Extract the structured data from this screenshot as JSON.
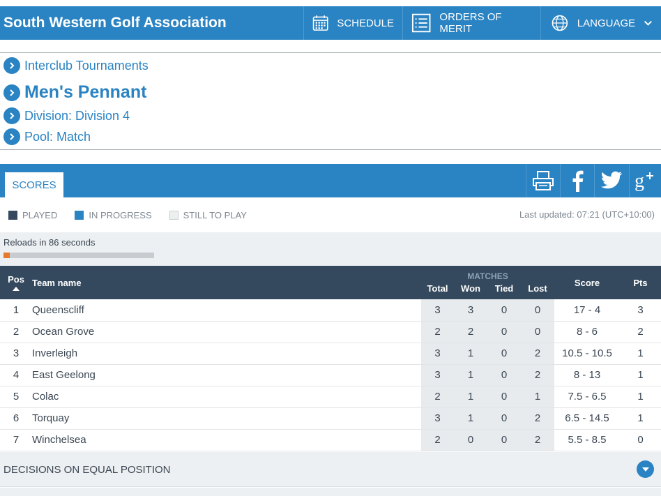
{
  "header": {
    "site_title": "South Western Golf Association",
    "nav": {
      "schedule": "SCHEDULE",
      "orders_of_merit": "ORDERS OF MERIT",
      "language": "LANGUAGE"
    }
  },
  "breadcrumbs": {
    "interclub": "Interclub Tournaments",
    "title": "Men's Pennant",
    "division": "Division: Division 4",
    "pool": "Pool: Match"
  },
  "scores_bar": {
    "tab_label": "SCORES",
    "share_icons": [
      "print-icon",
      "facebook-icon",
      "twitter-icon",
      "google-plus-icon"
    ]
  },
  "legend": {
    "played": "PLAYED",
    "in_progress": "IN PROGRESS",
    "still_to_play": "STILL TO PLAY",
    "last_updated": "Last updated: 07:21 (UTC+10:00)",
    "colors": {
      "played": "#34495e",
      "in_progress": "#2a83c2",
      "still_to_play": "#ecefef"
    }
  },
  "reload": {
    "text": "Reloads in 86 seconds",
    "progress_fraction": 0.04
  },
  "table": {
    "headers": {
      "pos": "Pos",
      "team": "Team name",
      "matches": "MATCHES",
      "total": "Total",
      "won": "Won",
      "tied": "Tied",
      "lost": "Lost",
      "score": "Score",
      "pts": "Pts"
    },
    "rows": [
      {
        "pos": "1",
        "team": "Queenscliff",
        "total": "3",
        "won": "3",
        "tied": "0",
        "lost": "0",
        "score": "17 - 4",
        "pts": "3"
      },
      {
        "pos": "2",
        "team": "Ocean Grove",
        "total": "2",
        "won": "2",
        "tied": "0",
        "lost": "0",
        "score": "8 - 6",
        "pts": "2"
      },
      {
        "pos": "3",
        "team": "Inverleigh",
        "total": "3",
        "won": "1",
        "tied": "0",
        "lost": "2",
        "score": "10.5 - 10.5",
        "pts": "1"
      },
      {
        "pos": "4",
        "team": "East Geelong",
        "total": "3",
        "won": "1",
        "tied": "0",
        "lost": "2",
        "score": "8 - 13",
        "pts": "1"
      },
      {
        "pos": "5",
        "team": "Colac",
        "total": "2",
        "won": "1",
        "tied": "0",
        "lost": "1",
        "score": "7.5 - 6.5",
        "pts": "1"
      },
      {
        "pos": "6",
        "team": "Torquay",
        "total": "3",
        "won": "1",
        "tied": "0",
        "lost": "2",
        "score": "6.5 - 14.5",
        "pts": "1"
      },
      {
        "pos": "7",
        "team": "Winchelsea",
        "total": "2",
        "won": "0",
        "tied": "0",
        "lost": "2",
        "score": "5.5 - 8.5",
        "pts": "0"
      }
    ]
  },
  "decisions": {
    "label": "DECISIONS ON EQUAL POSITION"
  },
  "theme": {
    "brand_blue": "#2a83c2",
    "header_dark": "#34495e",
    "progress_orange": "#e47a2e"
  }
}
